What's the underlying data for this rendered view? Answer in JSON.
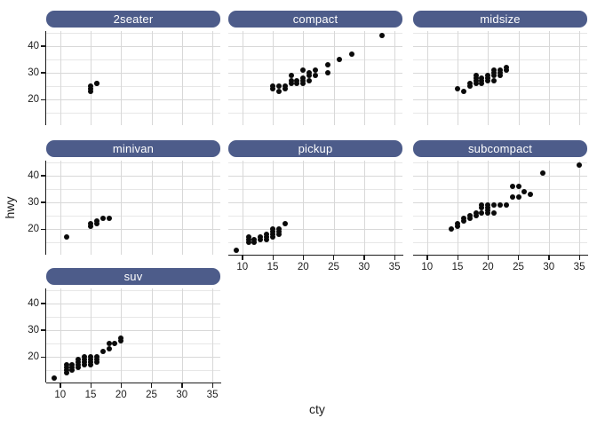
{
  "chart_data": {
    "type": "scatter",
    "title": "",
    "xlabel": "cty",
    "ylabel": "hwy",
    "x_ticks": [
      10,
      15,
      20,
      25,
      30,
      35
    ],
    "y_ticks": [
      20,
      30,
      40
    ],
    "x_gridlines": [
      10,
      15,
      20,
      25,
      30,
      35
    ],
    "y_gridlines_major": [
      20,
      30,
      40
    ],
    "y_gridlines_minor": [
      15,
      25,
      35,
      45
    ],
    "x_domain": [
      7.7,
      36.3
    ],
    "y_domain": [
      10.4,
      45.6
    ],
    "grid": "on",
    "legend_position": "none",
    "facets": [
      {
        "label": "2seater",
        "grid_row": 0,
        "grid_col": 0,
        "y_axis": true,
        "x_axis": false,
        "points": [
          [
            15,
            23
          ],
          [
            15,
            24
          ],
          [
            15,
            25
          ],
          [
            16,
            26
          ],
          [
            16,
            26
          ]
        ]
      },
      {
        "label": "compact",
        "grid_row": 0,
        "grid_col": 1,
        "y_axis": false,
        "x_axis": false,
        "points": [
          [
            15,
            25
          ],
          [
            15,
            24
          ],
          [
            16,
            23
          ],
          [
            16,
            25
          ],
          [
            17,
            24
          ],
          [
            17,
            25
          ],
          [
            18,
            26
          ],
          [
            18,
            27
          ],
          [
            18,
            29
          ],
          [
            19,
            26
          ],
          [
            19,
            27
          ],
          [
            20,
            26
          ],
          [
            20,
            27
          ],
          [
            20,
            28
          ],
          [
            20,
            31
          ],
          [
            21,
            27
          ],
          [
            21,
            29
          ],
          [
            21,
            30
          ],
          [
            22,
            29
          ],
          [
            22,
            31
          ],
          [
            24,
            30
          ],
          [
            24,
            33
          ],
          [
            26,
            35
          ],
          [
            28,
            37
          ],
          [
            33,
            44
          ]
        ]
      },
      {
        "label": "midsize",
        "grid_row": 0,
        "grid_col": 2,
        "y_axis": false,
        "x_axis": false,
        "points": [
          [
            15,
            24
          ],
          [
            16,
            23
          ],
          [
            17,
            25
          ],
          [
            17,
            26
          ],
          [
            18,
            26
          ],
          [
            18,
            27
          ],
          [
            18,
            28
          ],
          [
            18,
            29
          ],
          [
            19,
            26
          ],
          [
            19,
            27
          ],
          [
            19,
            28
          ],
          [
            20,
            27
          ],
          [
            20,
            28
          ],
          [
            20,
            29
          ],
          [
            21,
            27
          ],
          [
            21,
            29
          ],
          [
            21,
            30
          ],
          [
            21,
            31
          ],
          [
            22,
            29
          ],
          [
            22,
            30
          ],
          [
            22,
            31
          ],
          [
            23,
            31
          ],
          [
            23,
            32
          ]
        ]
      },
      {
        "label": "minivan",
        "grid_row": 1,
        "grid_col": 0,
        "y_axis": true,
        "x_axis": false,
        "points": [
          [
            11,
            17
          ],
          [
            15,
            21
          ],
          [
            15,
            22
          ],
          [
            16,
            22
          ],
          [
            16,
            23
          ],
          [
            17,
            24
          ],
          [
            18,
            24
          ]
        ]
      },
      {
        "label": "pickup",
        "grid_row": 1,
        "grid_col": 1,
        "y_axis": false,
        "x_axis": true,
        "points": [
          [
            9,
            12
          ],
          [
            11,
            15
          ],
          [
            11,
            16
          ],
          [
            11,
            17
          ],
          [
            12,
            15
          ],
          [
            12,
            16
          ],
          [
            13,
            16
          ],
          [
            13,
            17
          ],
          [
            14,
            16
          ],
          [
            14,
            17
          ],
          [
            14,
            18
          ],
          [
            15,
            17
          ],
          [
            15,
            18
          ],
          [
            15,
            19
          ],
          [
            15,
            20
          ],
          [
            16,
            18
          ],
          [
            16,
            19
          ],
          [
            16,
            20
          ],
          [
            17,
            22
          ]
        ]
      },
      {
        "label": "subcompact",
        "grid_row": 1,
        "grid_col": 2,
        "y_axis": false,
        "x_axis": true,
        "points": [
          [
            14,
            20
          ],
          [
            15,
            21
          ],
          [
            15,
            22
          ],
          [
            16,
            23
          ],
          [
            16,
            24
          ],
          [
            17,
            24
          ],
          [
            17,
            25
          ],
          [
            18,
            25
          ],
          [
            18,
            26
          ],
          [
            19,
            26
          ],
          [
            19,
            28
          ],
          [
            19,
            29
          ],
          [
            20,
            26
          ],
          [
            20,
            27
          ],
          [
            20,
            28
          ],
          [
            20,
            29
          ],
          [
            21,
            26
          ],
          [
            21,
            29
          ],
          [
            22,
            29
          ],
          [
            23,
            29
          ],
          [
            24,
            32
          ],
          [
            24,
            36
          ],
          [
            25,
            32
          ],
          [
            25,
            36
          ],
          [
            26,
            34
          ],
          [
            27,
            33
          ],
          [
            29,
            41
          ],
          [
            35,
            44
          ]
        ]
      },
      {
        "label": "suv",
        "grid_row": 2,
        "grid_col": 0,
        "y_axis": true,
        "x_axis": true,
        "points": [
          [
            9,
            12
          ],
          [
            11,
            14
          ],
          [
            11,
            15
          ],
          [
            11,
            16
          ],
          [
            11,
            17
          ],
          [
            12,
            15
          ],
          [
            12,
            16
          ],
          [
            12,
            17
          ],
          [
            13,
            16
          ],
          [
            13,
            17
          ],
          [
            13,
            18
          ],
          [
            13,
            19
          ],
          [
            14,
            17
          ],
          [
            14,
            18
          ],
          [
            14,
            19
          ],
          [
            14,
            20
          ],
          [
            15,
            17
          ],
          [
            15,
            18
          ],
          [
            15,
            19
          ],
          [
            15,
            20
          ],
          [
            16,
            18
          ],
          [
            16,
            19
          ],
          [
            16,
            20
          ],
          [
            17,
            22
          ],
          [
            18,
            23
          ],
          [
            18,
            25
          ],
          [
            19,
            25
          ],
          [
            20,
            26
          ],
          [
            20,
            27
          ]
        ]
      }
    ]
  },
  "style": {
    "strip_fill": "#4d5c8a",
    "strip_text_color": "#ffffff",
    "point_color": "#0a0a0a",
    "grid_major_color": "#d8d8d8",
    "grid_minor_color": "#e7e7e7",
    "axis_color": "#1c1c1c",
    "text_color": "#1c1c1c",
    "background": "#ffffff"
  }
}
